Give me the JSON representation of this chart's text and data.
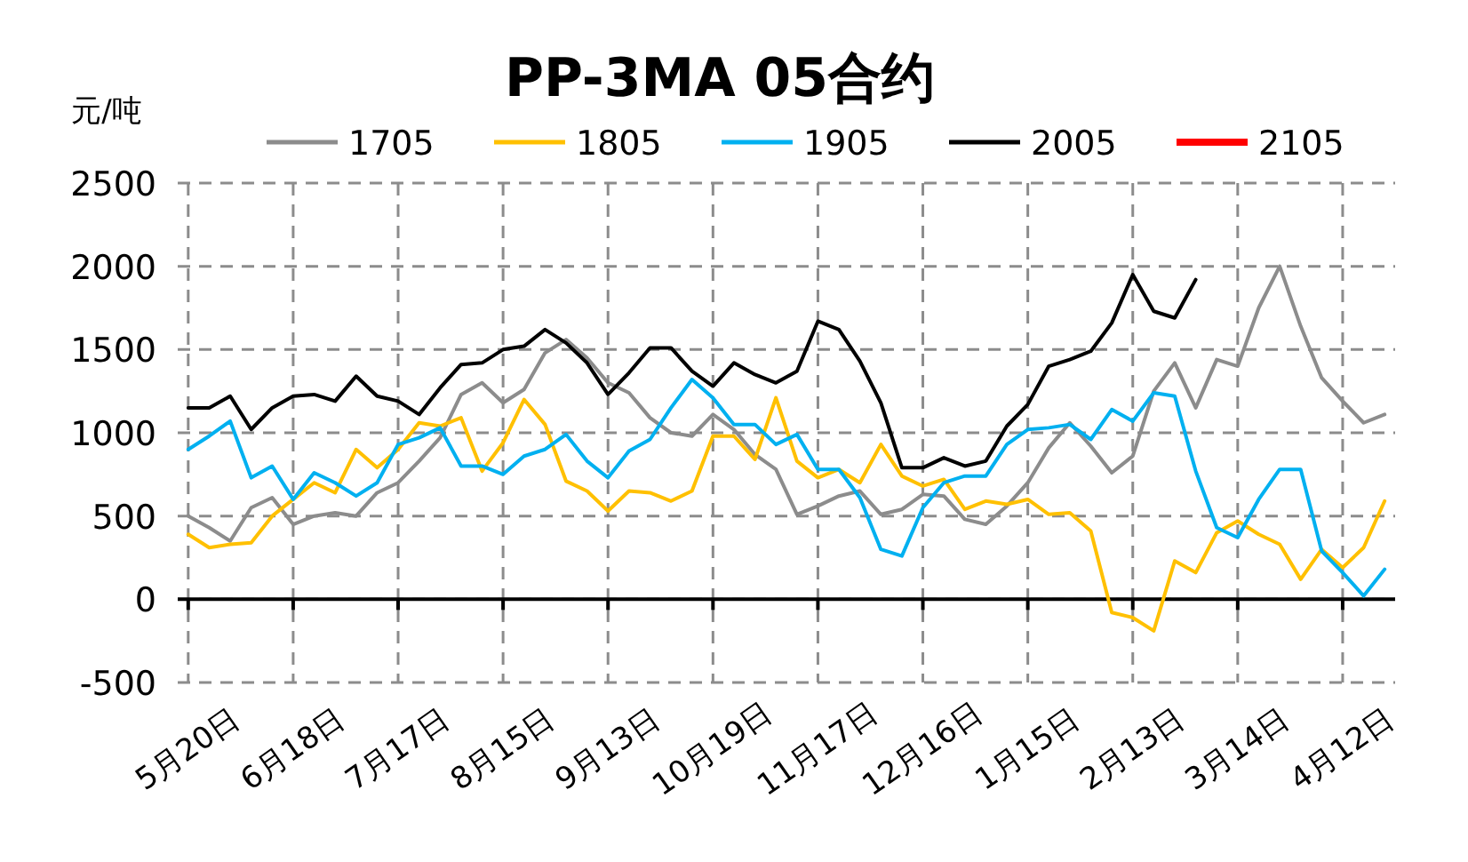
{
  "chart_data": {
    "type": "line",
    "title": "PP-3MA 05合约",
    "ylabel": "元/吨",
    "ylim": [
      -500,
      2500
    ],
    "categories": [
      "5月20日",
      null,
      null,
      null,
      null,
      "6月18日",
      null,
      null,
      null,
      null,
      "7月17日",
      null,
      null,
      null,
      null,
      "8月15日",
      null,
      null,
      null,
      null,
      "9月13日",
      null,
      null,
      null,
      null,
      "10月19日",
      null,
      null,
      null,
      null,
      "11月17日",
      null,
      null,
      null,
      null,
      "12月16日",
      null,
      null,
      null,
      null,
      "1月15日",
      null,
      null,
      null,
      null,
      "2月13日",
      null,
      null,
      null,
      null,
      "3月14日",
      null,
      null,
      null,
      null,
      "4月12日",
      null,
      null
    ],
    "yticks": [
      -500,
      0,
      500,
      1000,
      1500,
      2000,
      2500
    ],
    "grid": true,
    "legend": "top",
    "line_style": "solid",
    "marker": "none",
    "series": [
      {
        "name": "1705",
        "color": "#8c8c8c",
        "values": [
          500,
          430,
          350,
          550,
          610,
          450,
          500,
          520,
          500,
          640,
          700,
          830,
          970,
          1230,
          1300,
          1180,
          1260,
          1480,
          1560,
          1450,
          1300,
          1240,
          1090,
          1000,
          980,
          1110,
          1020,
          870,
          780,
          510,
          560,
          620,
          650,
          510,
          540,
          630,
          620,
          480,
          450,
          560,
          700,
          910,
          1060,
          920,
          760,
          860,
          1250,
          1420,
          1150,
          1440,
          1400,
          1750,
          2000,
          1640,
          1330,
          1190,
          1060,
          1110
        ]
      },
      {
        "name": "1805",
        "color": "#ffc000",
        "values": [
          390,
          310,
          330,
          340,
          500,
          600,
          700,
          640,
          900,
          790,
          900,
          1060,
          1040,
          1090,
          770,
          940,
          1200,
          1050,
          710,
          650,
          530,
          650,
          640,
          590,
          650,
          980,
          980,
          840,
          1210,
          830,
          730,
          780,
          700,
          930,
          740,
          680,
          720,
          540,
          590,
          570,
          600,
          510,
          520,
          410,
          -80,
          -110,
          -190,
          230,
          160,
          400,
          470,
          390,
          330,
          120,
          300,
          190,
          310,
          590
        ]
      },
      {
        "name": "1905",
        "color": "#00b0f0",
        "values": [
          900,
          980,
          1070,
          730,
          800,
          600,
          760,
          700,
          620,
          700,
          930,
          970,
          1030,
          800,
          800,
          750,
          860,
          900,
          990,
          830,
          730,
          890,
          960,
          1150,
          1320,
          1210,
          1050,
          1050,
          930,
          990,
          780,
          780,
          610,
          300,
          260,
          550,
          700,
          740,
          740,
          930,
          1020,
          1030,
          1050,
          960,
          1140,
          1070,
          1240,
          1220,
          770,
          430,
          370,
          600,
          780,
          780,
          290,
          160,
          20,
          180
        ]
      },
      {
        "name": "2005",
        "color": "#000000",
        "values": [
          1150,
          1150,
          1220,
          1020,
          1150,
          1220,
          1230,
          1190,
          1340,
          1220,
          1190,
          1110,
          1270,
          1410,
          1420,
          1500,
          1520,
          1620,
          1540,
          1420,
          1230,
          1360,
          1510,
          1510,
          1370,
          1280,
          1420,
          1350,
          1300,
          1370,
          1670,
          1620,
          1430,
          1180,
          790,
          790,
          850,
          800,
          830,
          1040,
          1170,
          1400,
          1440,
          1490,
          1660,
          1950,
          1730,
          1690,
          1920,
          null,
          null,
          null,
          null,
          null,
          null,
          null,
          null,
          null
        ]
      },
      {
        "name": "2105",
        "color": "#ff0000",
        "values": [
          null,
          null,
          null,
          null,
          null,
          null,
          null,
          null,
          null,
          null,
          null,
          null,
          null,
          null,
          null,
          null,
          null,
          null,
          null,
          null,
          null,
          null,
          null,
          null,
          null,
          null,
          null,
          null,
          null,
          null,
          null,
          null,
          null,
          null,
          null,
          null,
          null,
          null,
          null,
          null,
          null,
          null,
          null,
          null,
          null,
          null,
          null,
          null,
          null,
          null,
          null,
          null,
          null,
          null,
          null,
          null,
          null,
          null
        ]
      }
    ]
  }
}
